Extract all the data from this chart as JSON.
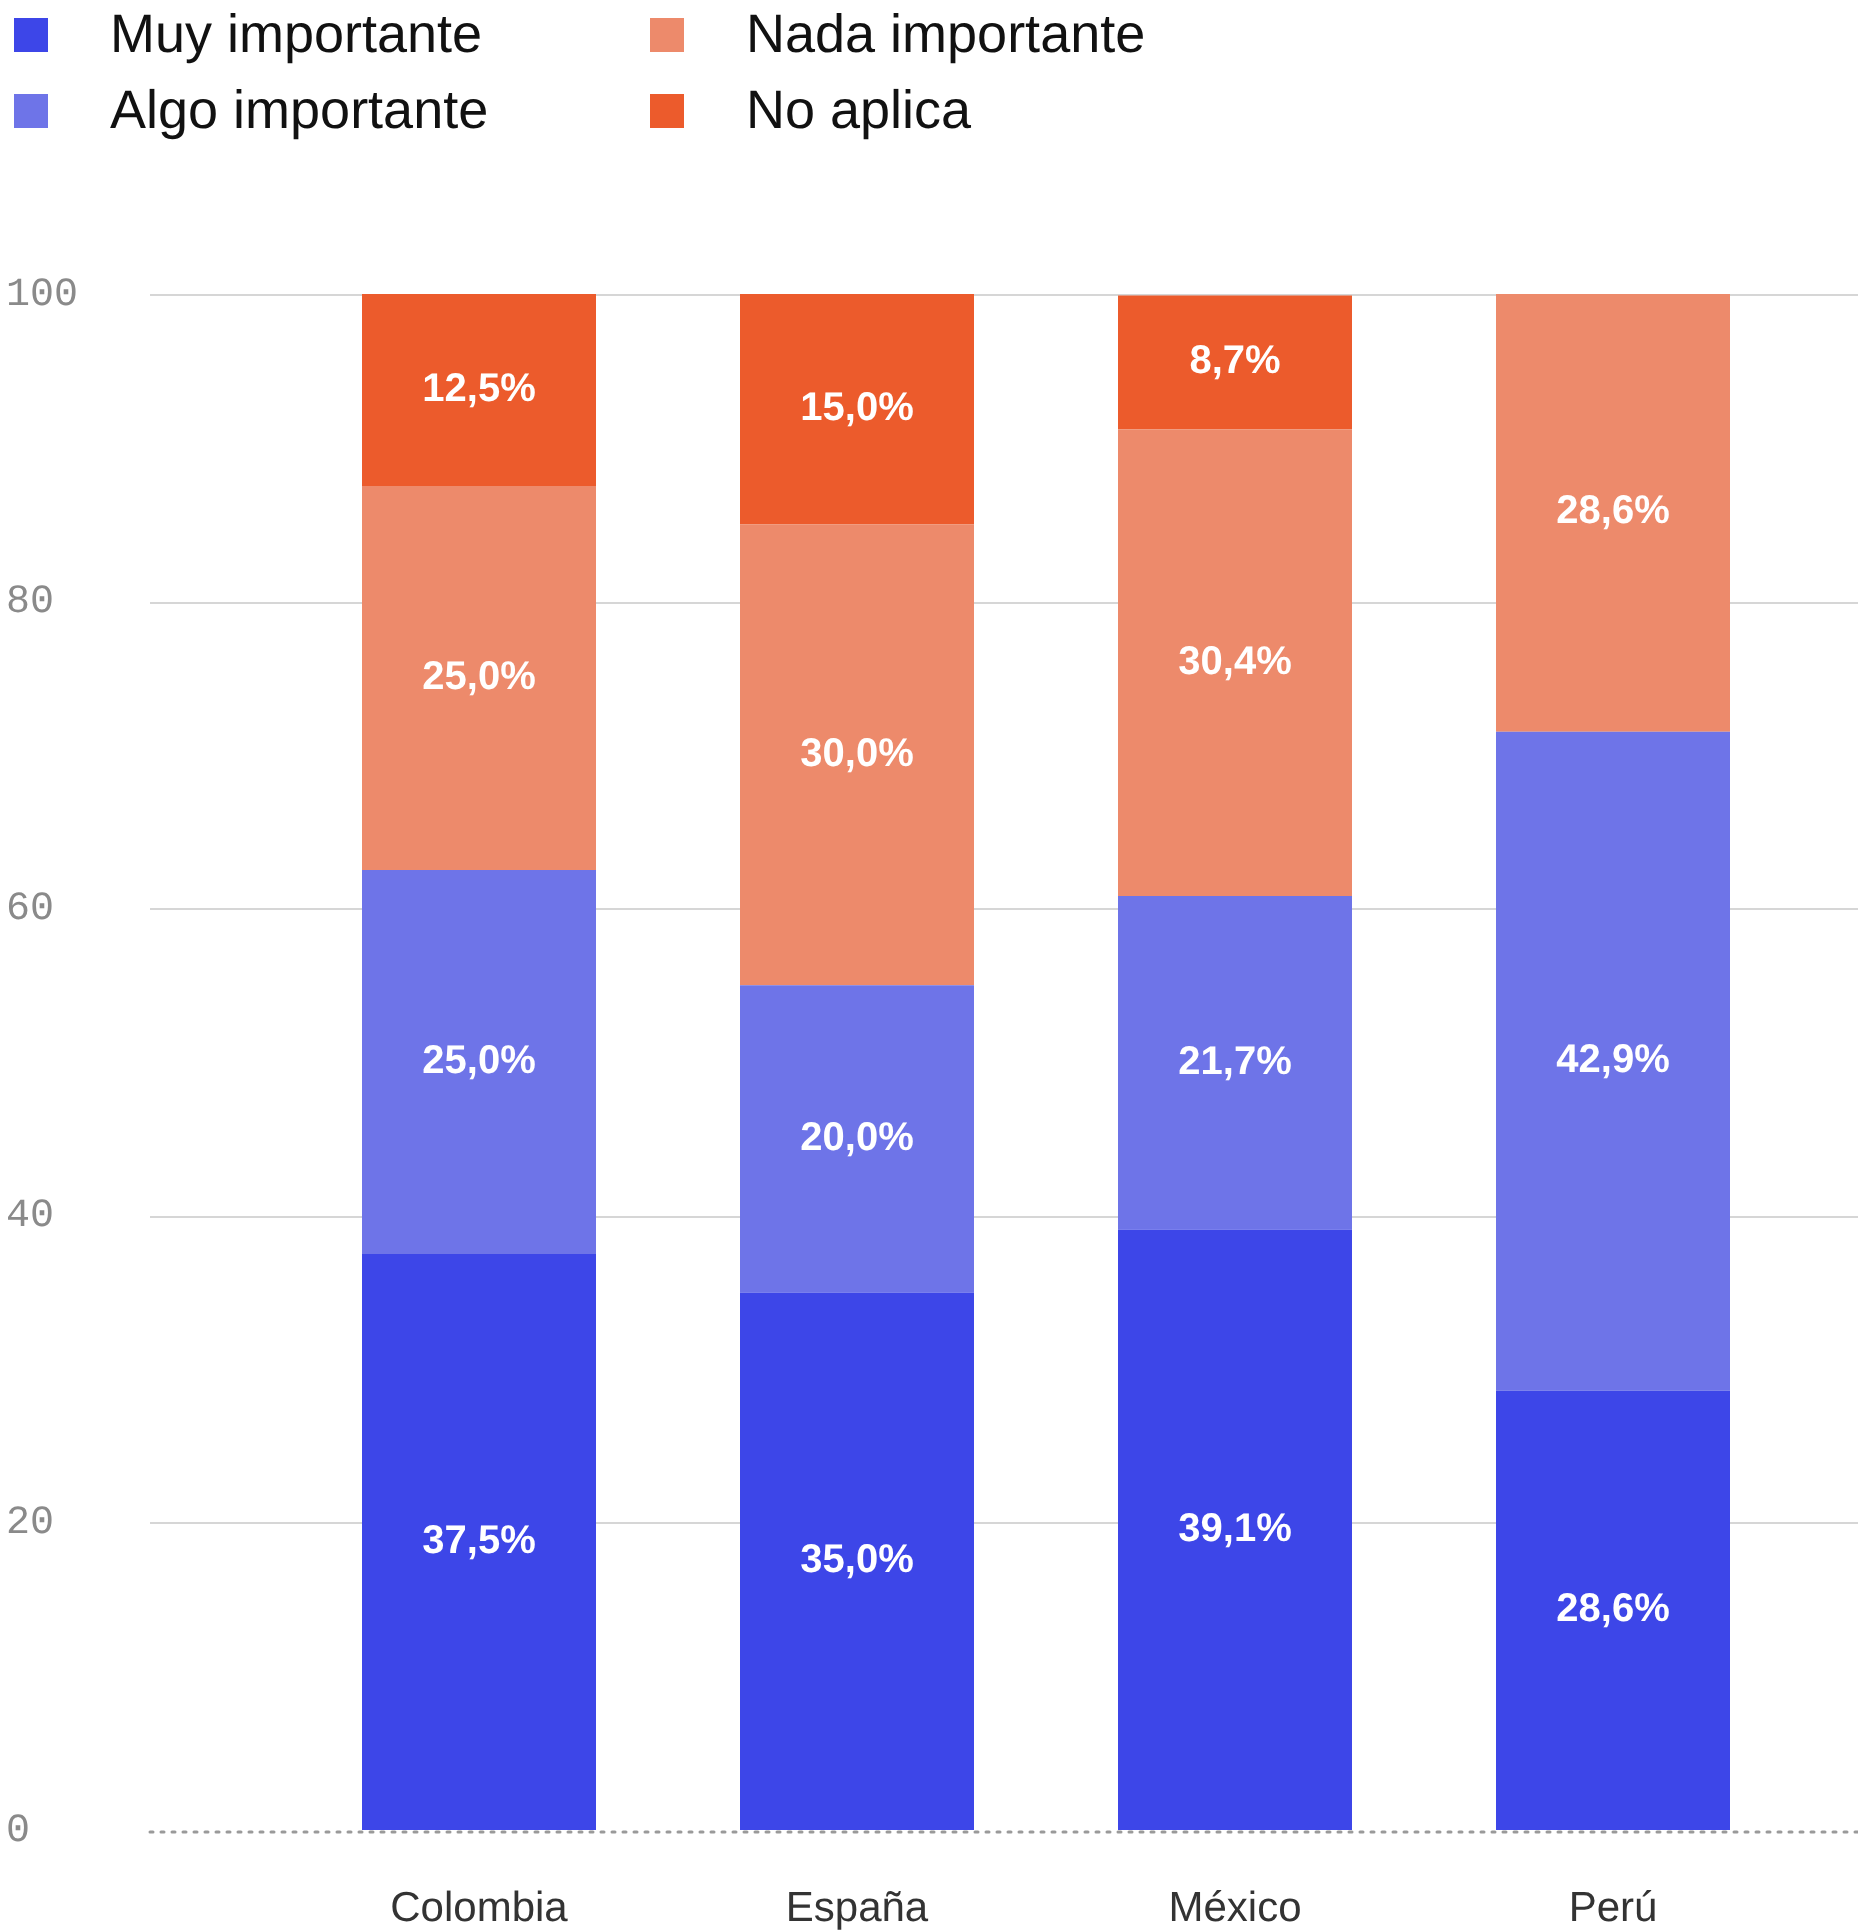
{
  "chart_data": {
    "type": "bar",
    "stacked": true,
    "categories": [
      "Colombia",
      "España",
      "México",
      "Perú"
    ],
    "series": [
      {
        "name": "Muy importante",
        "color": "#3d46e8",
        "values": [
          37.5,
          35.0,
          39.1,
          28.6
        ],
        "value_labels": [
          "37,5%",
          "35,0%",
          "39,1%",
          "28,6%"
        ]
      },
      {
        "name": "Algo importante",
        "color": "#6e74e8",
        "values": [
          25.0,
          20.0,
          21.7,
          42.9
        ],
        "value_labels": [
          "25,0%",
          "20,0%",
          "21,7%",
          "42,9%"
        ]
      },
      {
        "name": "Nada importante",
        "color": "#ed8a6b",
        "values": [
          25.0,
          30.0,
          30.4,
          28.6
        ],
        "value_labels": [
          "25,0%",
          "30,0%",
          "30,4%",
          "28,6%"
        ]
      },
      {
        "name": "No aplica",
        "color": "#ec5b2c",
        "values": [
          12.5,
          15.0,
          8.7,
          null
        ],
        "value_labels": [
          "12,5%",
          "15,0%",
          "8,7%",
          null
        ]
      }
    ],
    "ylim": [
      0,
      100
    ],
    "yticks": [
      0,
      20,
      40,
      60,
      80,
      100
    ],
    "grid": "y",
    "legend": "top left"
  }
}
